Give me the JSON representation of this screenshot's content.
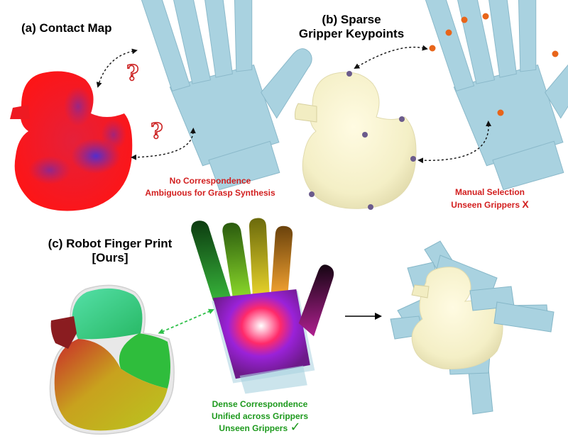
{
  "panel_a": {
    "title": "(a) Contact Map",
    "caption_line1": "No Correspondence",
    "caption_line2": "Ambiguous for Grasp  Synthesis",
    "question_mark": "?"
  },
  "panel_b": {
    "title_line1": "(b) Sparse",
    "title_line2": "Gripper Keypoints",
    "caption_line1": "Manual Selection",
    "caption_line2": "Unseen Grippers",
    "cross_mark": "X"
  },
  "panel_c": {
    "title_line1": "(c) Robot Finger Print",
    "title_line2": "[Ours]",
    "caption_line1": "Dense Correspondence",
    "caption_line2": "Unified across Grippers",
    "caption_line3": "Unseen Grippers",
    "check_mark": "✓"
  },
  "colors": {
    "hand": "#a9d2e0",
    "hand_dark": "#86b7c8",
    "duck_cream": "#f7f3cf",
    "caption_red": "#d21f1f",
    "caption_green": "#1e9a1e",
    "keypoint_purple": "#6b5b8c",
    "keypoint_orange": "#e8651a"
  }
}
